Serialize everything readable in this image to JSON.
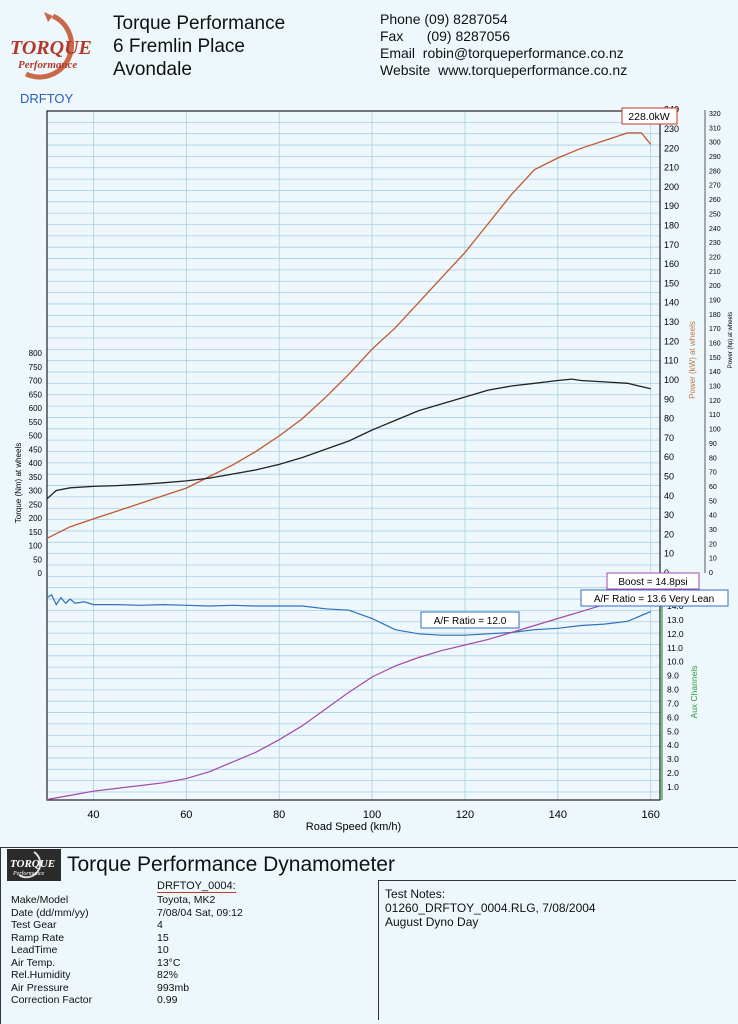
{
  "header": {
    "logo_text": "TORQUE Performance",
    "logo_sub": "DRFTOY",
    "company_lines": [
      "Torque Performance",
      "6 Fremlin Place",
      "Avondale"
    ],
    "contact": [
      {
        "label": "Phone",
        "value": "(09) 8287054"
      },
      {
        "label": "Fax",
        "value": "(09) 8287056"
      },
      {
        "label": "Email",
        "value": "robin@torqueperformance.co.nz"
      },
      {
        "label": "Website",
        "value": "www.torqueperformance.co.nz"
      }
    ]
  },
  "chart_data": {
    "type": "line",
    "xlabel": "Road Speed (km/h)",
    "xlim": [
      30,
      162
    ],
    "x_ticks": [
      "40",
      "60",
      "80",
      "100",
      "120",
      "140",
      "160"
    ],
    "upper": {
      "torque_axis": {
        "label": "Torque (Nm) at wheels",
        "ticks": [
          "0",
          "50",
          "100",
          "150",
          "200",
          "250",
          "300",
          "350",
          "400",
          "450",
          "500",
          "550",
          "600",
          "650",
          "700",
          "750",
          "800"
        ]
      },
      "power_axis": {
        "label": "Power (kW) at wheels",
        "color": "#b87c4c",
        "ticks": [
          "0",
          "10",
          "20",
          "30",
          "40",
          "50",
          "60",
          "70",
          "80",
          "90",
          "100",
          "110",
          "120",
          "130",
          "140",
          "150",
          "160",
          "170",
          "180",
          "190",
          "200",
          "210",
          "220",
          "230",
          "240"
        ]
      },
      "power_hp_axis": {
        "label": "Power (hp) at wheels",
        "ticks": [
          "0",
          "10",
          "20",
          "30",
          "40",
          "50",
          "60",
          "70",
          "80",
          "90",
          "100",
          "110",
          "120",
          "130",
          "140",
          "150",
          "160",
          "170",
          "180",
          "190",
          "200",
          "210",
          "220",
          "230",
          "240",
          "250",
          "260",
          "270",
          "280",
          "290",
          "300",
          "310",
          "320"
        ]
      },
      "series": [
        {
          "name": "Power",
          "color": "#c0582e",
          "axis": "power_kw",
          "x": [
            30,
            35,
            40,
            45,
            50,
            55,
            60,
            65,
            70,
            75,
            80,
            85,
            90,
            95,
            100,
            105,
            110,
            115,
            120,
            125,
            130,
            135,
            140,
            145,
            150,
            155,
            158,
            160
          ],
          "y": [
            18,
            24,
            28,
            32,
            36,
            40,
            44,
            50,
            56,
            63,
            71,
            80,
            91,
            103,
            116,
            127,
            140,
            153,
            166,
            181,
            196,
            209,
            215,
            220,
            224,
            228,
            228,
            222
          ]
        },
        {
          "name": "Torque",
          "color": "#222222",
          "axis": "torque",
          "x": [
            30,
            32,
            35,
            40,
            45,
            50,
            55,
            60,
            65,
            70,
            75,
            80,
            85,
            90,
            95,
            100,
            105,
            110,
            115,
            120,
            125,
            130,
            135,
            140,
            143,
            145,
            150,
            155,
            160
          ],
          "y": [
            270,
            300,
            310,
            315,
            318,
            322,
            328,
            335,
            345,
            360,
            375,
            395,
            420,
            450,
            480,
            520,
            555,
            590,
            615,
            640,
            665,
            680,
            690,
            700,
            705,
            700,
            695,
            690,
            670
          ]
        }
      ],
      "annotations": [
        {
          "text": "228.0kW",
          "color": "#c0392b"
        }
      ]
    },
    "lower": {
      "aux_axis": {
        "label": "Aux Channels",
        "color": "#2e9a3a",
        "ticks": [
          "1.0",
          "2.0",
          "3.0",
          "4.0",
          "5.0",
          "6.0",
          "7.0",
          "8.0",
          "9.0",
          "10.0",
          "11.0",
          "12.0",
          "13.0",
          "14.0"
        ]
      },
      "series": [
        {
          "name": "A/F Ratio",
          "color": "#2f6fc0",
          "x": [
            30,
            31,
            32,
            33,
            34,
            35,
            36,
            38,
            40,
            45,
            50,
            55,
            60,
            65,
            70,
            75,
            80,
            85,
            90,
            95,
            100,
            105,
            110,
            115,
            120,
            125,
            130,
            135,
            140,
            145,
            150,
            155,
            160
          ],
          "y": [
            14.6,
            14.8,
            14.1,
            14.6,
            14.2,
            14.5,
            14.2,
            14.3,
            14.1,
            14.1,
            14.05,
            14.1,
            14.05,
            14.0,
            14.05,
            14.0,
            14.0,
            14.0,
            13.8,
            13.7,
            13.1,
            12.3,
            12.0,
            11.9,
            11.9,
            12.0,
            12.1,
            12.3,
            12.4,
            12.6,
            12.7,
            12.9,
            13.6
          ]
        },
        {
          "name": "Boost",
          "color": "#a24aa8",
          "x": [
            30,
            35,
            40,
            45,
            50,
            55,
            60,
            65,
            70,
            75,
            80,
            85,
            90,
            95,
            100,
            105,
            110,
            115,
            120,
            125,
            130,
            135,
            140,
            145,
            150,
            155,
            160
          ],
          "y": [
            0.1,
            0.4,
            0.7,
            0.9,
            1.1,
            1.3,
            1.6,
            2.1,
            2.8,
            3.5,
            4.4,
            5.4,
            6.6,
            7.8,
            8.9,
            9.7,
            10.3,
            10.8,
            11.2,
            11.6,
            12.1,
            12.6,
            13.1,
            13.6,
            14.1,
            14.5,
            14.8
          ]
        }
      ],
      "annotations": [
        {
          "text": "Boost = 14.8psi",
          "color": "#a24aa8"
        },
        {
          "text": "A/F Ratio = 13.6 Very Lean",
          "color": "#2f6fc0"
        },
        {
          "text": "A/F Ratio = 12.0",
          "color": "#2f6fc0"
        }
      ]
    }
  },
  "footer": {
    "title": "Torque Performance Dynamometer",
    "run_name": "DRFTOY_0004:",
    "details": [
      {
        "label": "Make/Model",
        "value": "Toyota, MK2"
      },
      {
        "label": "Date (dd/mm/yy)",
        "value": "7/08/04 Sat, 09:12"
      },
      {
        "label": "Test Gear",
        "value": "4"
      },
      {
        "label": "Ramp Rate",
        "value": "15"
      },
      {
        "label": "LeadTime",
        "value": "10"
      },
      {
        "label": "Air Temp.",
        "value": "13°C"
      },
      {
        "label": "Rel.Humidity",
        "value": "82%"
      },
      {
        "label": "Air Pressure",
        "value": "993mb"
      },
      {
        "label": "Correction Factor",
        "value": "0.99"
      }
    ],
    "notes_label": "Test Notes:",
    "notes": [
      "01260_DRFTOY_0004.RLG, 7/08/2004",
      "August Dyno Day"
    ]
  }
}
